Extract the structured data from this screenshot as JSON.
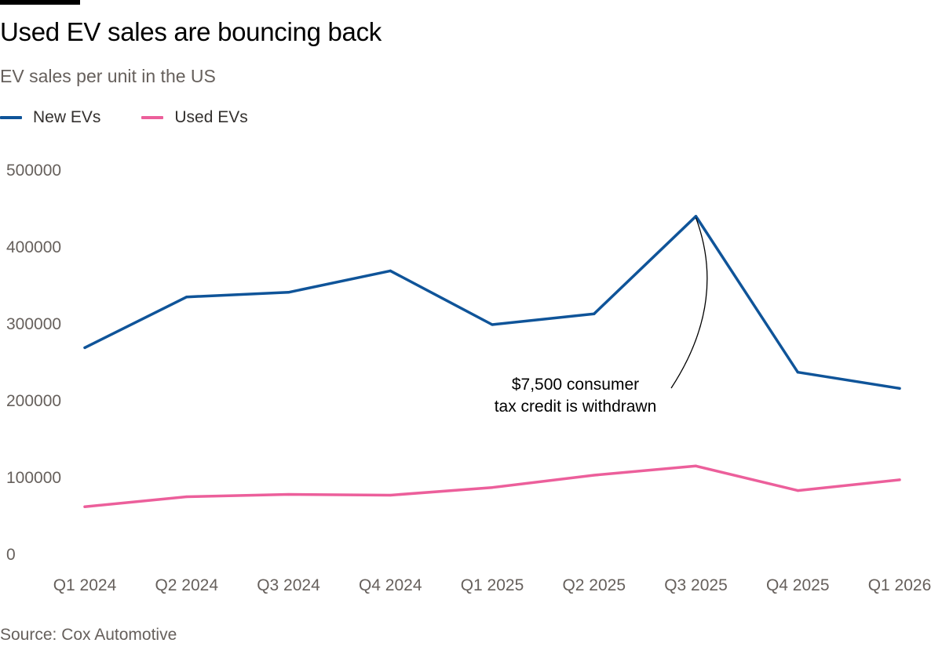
{
  "header": {
    "title": "Used EV sales are bouncing back",
    "subtitle": "EV sales per unit in the US"
  },
  "legend": [
    {
      "label": "New EVs",
      "color": "#0f5499"
    },
    {
      "label": "Used EVs",
      "color": "#ec5f9b"
    }
  ],
  "footer": {
    "source": "Source: Cox Automotive"
  },
  "chart_data": {
    "type": "line",
    "title": "Used EV sales are bouncing back",
    "subtitle": "EV sales per unit in the US",
    "categories": [
      "Q1 2024",
      "Q2 2024",
      "Q3 2024",
      "Q4 2024",
      "Q1 2025",
      "Q2 2025",
      "Q3 2025",
      "Q4 2025",
      "Q1 2026"
    ],
    "series": [
      {
        "name": "New EVs",
        "color": "#0f5499",
        "values": [
          268000,
          334000,
          340000,
          368000,
          298000,
          312000,
          439000,
          236000,
          215000
        ]
      },
      {
        "name": "Used EVs",
        "color": "#ec5f9b",
        "values": [
          61000,
          74000,
          77000,
          76000,
          86000,
          102000,
          114000,
          82000,
          96000
        ]
      }
    ],
    "ylim": [
      0,
      500000
    ],
    "yticks": [
      0,
      100000,
      200000,
      300000,
      400000,
      500000
    ],
    "grid": false,
    "legend_position": "top-left",
    "annotation": {
      "lines": [
        "$7,500 consumer",
        "tax credit is withdrawn"
      ],
      "category": "Q3 2025",
      "series": "New EVs"
    }
  }
}
